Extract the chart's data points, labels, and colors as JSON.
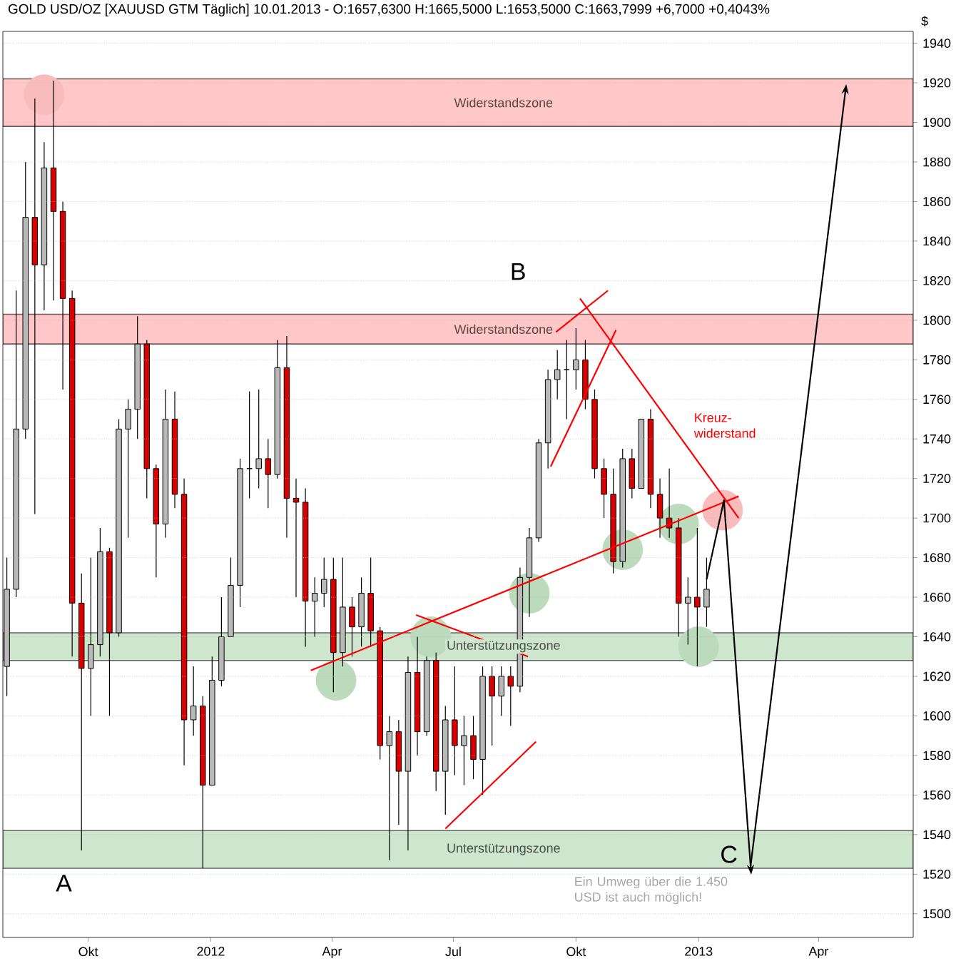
{
  "chart_data": {
    "type": "candlestick",
    "title": "GOLD USD/OZ [XAUUSD GTM  Täglich] 10.01.2013 - O:1657,6300 H:1665,5000 L:1653,5000 C:1663,7999 +6,7000 +0,4043%",
    "ylabel": "$",
    "x": [
      "2011-08-01",
      "2011-08-08",
      "2011-08-15",
      "2011-08-22",
      "2011-08-29",
      "2011-09-05",
      "2011-09-12",
      "2011-09-19",
      "2011-09-26",
      "2011-10-03",
      "2011-10-10",
      "2011-10-17",
      "2011-10-24",
      "2011-10-31",
      "2011-11-07",
      "2011-11-14",
      "2011-11-21",
      "2011-11-28",
      "2011-12-05",
      "2011-12-12",
      "2011-12-19",
      "2011-12-26",
      "2012-01-02",
      "2012-01-09",
      "2012-01-16",
      "2012-01-23",
      "2012-01-30",
      "2012-02-06",
      "2012-02-13",
      "2012-02-20",
      "2012-02-27",
      "2012-03-05",
      "2012-03-12",
      "2012-03-19",
      "2012-03-26",
      "2012-04-02",
      "2012-04-09",
      "2012-04-16",
      "2012-04-23",
      "2012-04-30",
      "2012-05-07",
      "2012-05-14",
      "2012-05-21",
      "2012-05-28",
      "2012-06-04",
      "2012-06-11",
      "2012-06-18",
      "2012-06-25",
      "2012-07-02",
      "2012-07-09",
      "2012-07-16",
      "2012-07-23",
      "2012-07-30",
      "2012-08-06",
      "2012-08-13",
      "2012-08-20",
      "2012-08-27",
      "2012-09-03",
      "2012-09-10",
      "2012-09-17",
      "2012-09-24",
      "2012-10-01",
      "2012-10-08",
      "2012-10-15",
      "2012-10-22",
      "2012-10-29",
      "2012-11-05",
      "2012-11-12",
      "2012-11-19",
      "2012-11-26",
      "2012-12-03",
      "2012-12-10",
      "2012-12-17",
      "2012-12-24",
      "2012-12-31",
      "2013-01-07"
    ],
    "ohlc": [
      [
        1625,
        1680,
        1610,
        1664
      ],
      [
        1664,
        1815,
        1660,
        1745
      ],
      [
        1745,
        1880,
        1740,
        1852
      ],
      [
        1852,
        1912,
        1702,
        1828
      ],
      [
        1828,
        1890,
        1805,
        1877
      ],
      [
        1877,
        1921,
        1810,
        1855
      ],
      [
        1855,
        1860,
        1765,
        1811
      ],
      [
        1811,
        1815,
        1630,
        1657
      ],
      [
        1657,
        1672,
        1532,
        1624
      ],
      [
        1624,
        1680,
        1600,
        1636
      ],
      [
        1636,
        1695,
        1630,
        1683
      ],
      [
        1683,
        1685,
        1600,
        1642
      ],
      [
        1642,
        1750,
        1640,
        1745
      ],
      [
        1745,
        1760,
        1690,
        1755
      ],
      [
        1755,
        1802,
        1740,
        1788
      ],
      [
        1788,
        1790,
        1710,
        1725
      ],
      [
        1725,
        1727,
        1670,
        1697
      ],
      [
        1697,
        1765,
        1690,
        1750
      ],
      [
        1750,
        1764,
        1705,
        1712
      ],
      [
        1712,
        1720,
        1575,
        1598
      ],
      [
        1598,
        1625,
        1590,
        1605
      ],
      [
        1605,
        1610,
        1523,
        1565
      ],
      [
        1565,
        1630,
        1565,
        1618
      ],
      [
        1618,
        1660,
        1615,
        1640
      ],
      [
        1640,
        1680,
        1640,
        1666
      ],
      [
        1666,
        1730,
        1655,
        1725
      ],
      [
        1725,
        1764,
        1710,
        1725
      ],
      [
        1725,
        1765,
        1715,
        1730
      ],
      [
        1730,
        1740,
        1705,
        1722
      ],
      [
        1722,
        1790,
        1720,
        1776
      ],
      [
        1776,
        1792,
        1690,
        1710
      ],
      [
        1710,
        1720,
        1660,
        1708
      ],
      [
        1708,
        1715,
        1635,
        1658
      ],
      [
        1658,
        1670,
        1640,
        1662
      ],
      [
        1662,
        1680,
        1655,
        1669
      ],
      [
        1669,
        1680,
        1612,
        1632
      ],
      [
        1632,
        1680,
        1625,
        1655
      ],
      [
        1655,
        1660,
        1630,
        1645
      ],
      [
        1645,
        1670,
        1635,
        1662
      ],
      [
        1662,
        1680,
        1635,
        1643
      ],
      [
        1643,
        1645,
        1578,
        1585
      ],
      [
        1585,
        1600,
        1527,
        1592
      ],
      [
        1592,
        1598,
        1545,
        1572
      ],
      [
        1572,
        1630,
        1532,
        1622
      ],
      [
        1622,
        1640,
        1580,
        1592
      ],
      [
        1592,
        1630,
        1590,
        1628
      ],
      [
        1628,
        1632,
        1562,
        1572
      ],
      [
        1572,
        1605,
        1550,
        1598
      ],
      [
        1598,
        1625,
        1570,
        1585
      ],
      [
        1585,
        1600,
        1565,
        1590
      ],
      [
        1590,
        1600,
        1568,
        1578
      ],
      [
        1578,
        1625,
        1560,
        1620
      ],
      [
        1620,
        1625,
        1585,
        1610
      ],
      [
        1610,
        1625,
        1600,
        1620
      ],
      [
        1620,
        1625,
        1595,
        1615
      ],
      [
        1615,
        1675,
        1612,
        1670
      ],
      [
        1670,
        1695,
        1650,
        1690
      ],
      [
        1690,
        1740,
        1688,
        1738
      ],
      [
        1738,
        1775,
        1725,
        1770
      ],
      [
        1770,
        1785,
        1760,
        1775
      ],
      [
        1775,
        1790,
        1750,
        1775
      ],
      [
        1775,
        1796,
        1765,
        1780
      ],
      [
        1780,
        1790,
        1755,
        1760
      ],
      [
        1760,
        1765,
        1720,
        1725
      ],
      [
        1725,
        1730,
        1700,
        1712
      ],
      [
        1712,
        1725,
        1672,
        1678
      ],
      [
        1678,
        1735,
        1675,
        1730
      ],
      [
        1730,
        1735,
        1710,
        1715
      ],
      [
        1715,
        1750,
        1715,
        1750
      ],
      [
        1750,
        1755,
        1705,
        1712
      ],
      [
        1712,
        1720,
        1690,
        1700
      ],
      [
        1700,
        1725,
        1690,
        1695
      ],
      [
        1695,
        1700,
        1640,
        1657
      ],
      [
        1657,
        1670,
        1636,
        1660
      ],
      [
        1660,
        1695,
        1625,
        1655
      ],
      [
        1655,
        1680,
        1645,
        1664
      ]
    ],
    "series": [
      {
        "type": "scatter",
        "marker": "circle",
        "color": "#bcdabc",
        "x": [
          "2012-04-04",
          "2012-06-14",
          "2012-08-27",
          "2012-11-05",
          "2012-12-17",
          "2013-01-01"
        ],
        "values": [
          1618,
          1640,
          1662,
          1684,
          1697,
          1635
        ]
      },
      {
        "type": "scatter",
        "marker": "circle",
        "color": "#f8bcbc",
        "x": [
          "2011-08-29",
          "2013-01-19"
        ],
        "values": [
          1914,
          1704
        ]
      },
      {
        "type": "line",
        "color": "#ff0000",
        "x": [
          "2012-03-16",
          "2013-01-31"
        ],
        "values": [
          1623,
          1711
        ]
      },
      {
        "type": "line",
        "color": "#ff0000",
        "x": [
          "2012-10-04",
          "2013-01-31"
        ],
        "values": [
          1811,
          1700
        ]
      },
      {
        "type": "line",
        "color": "#ff0000",
        "x": [
          "2012-09-16",
          "2012-10-25"
        ],
        "values": [
          1794,
          1815
        ]
      },
      {
        "type": "line",
        "color": "#ff0000",
        "x": [
          "2012-09-12",
          "2012-10-31"
        ],
        "values": [
          1726,
          1795
        ]
      },
      {
        "type": "line",
        "color": "#ff0000",
        "x": [
          "2012-06-03",
          "2012-08-26"
        ],
        "values": [
          1651,
          1630
        ]
      },
      {
        "type": "line",
        "color": "#ff0000",
        "x": [
          "2012-06-25",
          "2012-09-01"
        ],
        "values": [
          1543,
          1587
        ]
      },
      {
        "type": "line",
        "color": "#000000",
        "x": [
          "2013-01-07",
          "2013-01-20",
          "2013-02-09"
        ],
        "values": [
          1669,
          1709,
          1524
        ]
      },
      {
        "type": "line",
        "color": "#000000",
        "x": [
          "2013-02-09",
          "2013-04-21"
        ],
        "values": [
          1524,
          1915
        ]
      }
    ],
    "bands": [
      {
        "axis": "y",
        "from": 1898,
        "to": 1922,
        "label": "Widerstandszone",
        "color": "#ffc7c7"
      },
      {
        "axis": "y",
        "from": 1788,
        "to": 1803,
        "label": "Widerstandszone",
        "color": "#ffc7c7"
      },
      {
        "axis": "y",
        "from": 1628,
        "to": 1642,
        "label": "Unterstützungszone",
        "color": "#cee5ce"
      },
      {
        "axis": "y",
        "from": 1523,
        "to": 1542,
        "label": "Unterstützungszone",
        "color": "#cee5ce"
      }
    ],
    "annotations": [
      "A",
      "B",
      {
        "text": "C",
        "x": "2013-02-03",
        "y": 1530
      },
      "Kreuz- widerstand",
      "Ein Umweg über die 1.450 USD ist auch möglich!"
    ],
    "xlim": [
      "2011-07-29",
      "2013-06-11"
    ],
    "xticks": [
      {
        "value": "2011-10-01",
        "label": "Okt"
      },
      {
        "value": "2012-01-01",
        "label": "2012"
      },
      {
        "value": "2012-04-01",
        "label": "Apr"
      },
      {
        "value": "2012-07-01",
        "label": "Jul"
      },
      {
        "value": "2012-10-01",
        "label": "Okt"
      },
      {
        "value": "2013-01-01",
        "label": "2013"
      },
      {
        "value": "2013-04-01",
        "label": "Apr"
      }
    ],
    "ylim": [
      1488,
      1946
    ],
    "yticks": [
      1500,
      1520,
      1540,
      1560,
      1580,
      1600,
      1620,
      1640,
      1660,
      1680,
      1700,
      1720,
      1740,
      1760,
      1780,
      1800,
      1820,
      1840,
      1860,
      1880,
      1900,
      1920,
      1940
    ],
    "grid": "y"
  }
}
